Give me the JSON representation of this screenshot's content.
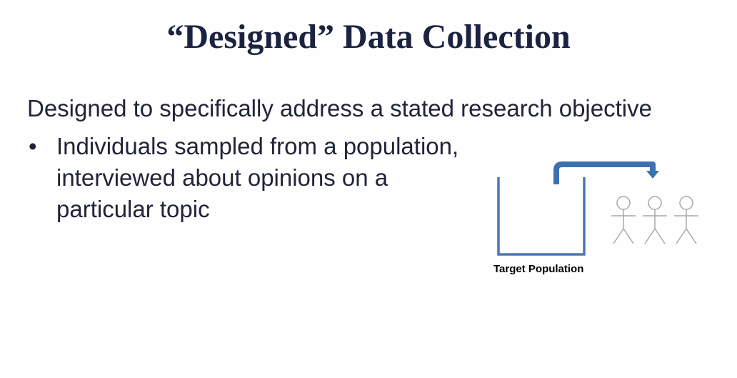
{
  "slide": {
    "title": "“Designed” Data Collection",
    "lead_text": "Designed to specifically address a stated research objective",
    "bullets": [
      {
        "symbol": "•",
        "lines": [
          "Individuals sampled from a population,",
          "interviewed about opinions on a",
          "particular topic"
        ]
      }
    ]
  },
  "diagram": {
    "label": "Target Population",
    "container_color": "#4a78b0",
    "arrow_color": "#3d70ae",
    "figure_color": "#a8a8a8",
    "figure_count": 3,
    "icons": [
      "container-icon",
      "curved-arrow-icon",
      "stick-figure-icon"
    ]
  },
  "colors": {
    "title": "#1c2340",
    "body_text": "#1f2438",
    "background": "#fefefe"
  }
}
